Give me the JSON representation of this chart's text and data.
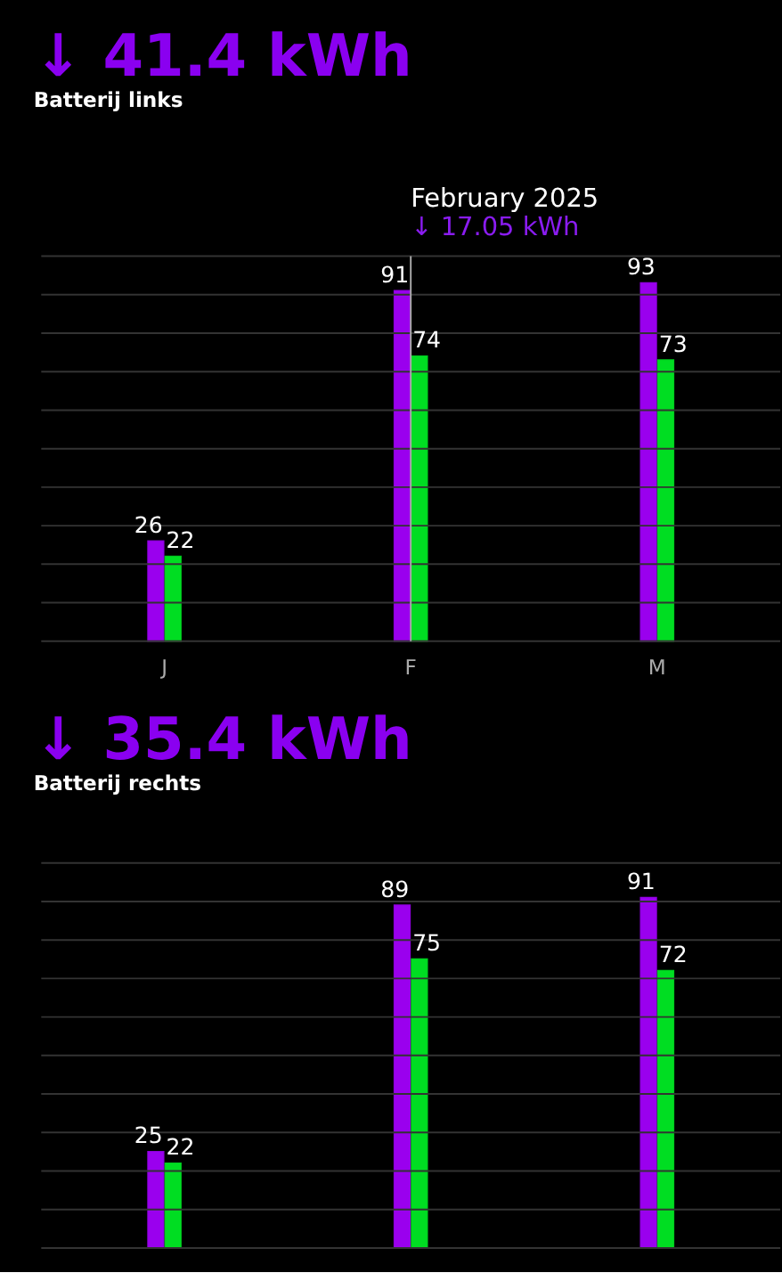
{
  "chart_data": [
    {
      "type": "bar",
      "title": "↓ 41.4 kWh",
      "subtitle": "Batterij links",
      "categories": [
        "J",
        "F",
        "M"
      ],
      "series": [
        {
          "color": "#9a00ee",
          "values": [
            26,
            91,
            93
          ]
        },
        {
          "color": "#00dd22",
          "values": [
            22,
            74,
            73
          ]
        }
      ],
      "ylim": [
        0,
        100
      ],
      "yticks": [
        {
          "value": 0,
          "label": null
        },
        {
          "value": 10,
          "label": null
        },
        {
          "value": 20,
          "label": null
        },
        {
          "value": 30,
          "label": null
        },
        {
          "value": 40,
          "label": null
        },
        {
          "value": 50,
          "label": null
        },
        {
          "value": 60,
          "label": null
        },
        {
          "value": 70,
          "label": null
        },
        {
          "value": 80,
          "label": null
        },
        {
          "value": 90,
          "label": null
        },
        {
          "value": 100,
          "label": null
        }
      ],
      "data_labels": true,
      "grid": "y",
      "tick_labels": "x",
      "ref_lines": [
        {
          "axis": "x",
          "value": "F",
          "color": "#aaaaaa"
        }
      ],
      "annotations": [
        "February 2025",
        "↓ 17.05 kWh"
      ]
    },
    {
      "type": "bar",
      "title": "↓ 35.4 kWh",
      "subtitle": "Batterij rechts",
      "categories": [
        null,
        null,
        null
      ],
      "series": [
        {
          "color": "#9a00ee",
          "values": [
            25,
            89,
            91
          ]
        },
        {
          "color": "#00dd22",
          "values": [
            22,
            75,
            72
          ]
        }
      ],
      "ylim": [
        0,
        100
      ],
      "yticks": [
        {
          "value": 0,
          "label": null
        },
        {
          "value": 10,
          "label": null
        },
        {
          "value": 20,
          "label": null
        },
        {
          "value": 30,
          "label": null
        },
        {
          "value": 40,
          "label": null
        },
        {
          "value": 50,
          "label": null
        },
        {
          "value": 60,
          "label": null
        },
        {
          "value": 70,
          "label": null
        },
        {
          "value": 80,
          "label": null
        },
        {
          "value": 90,
          "label": null
        },
        {
          "value": 100,
          "label": null
        }
      ],
      "data_labels": true,
      "grid": "y",
      "tick_labels": false
    }
  ]
}
